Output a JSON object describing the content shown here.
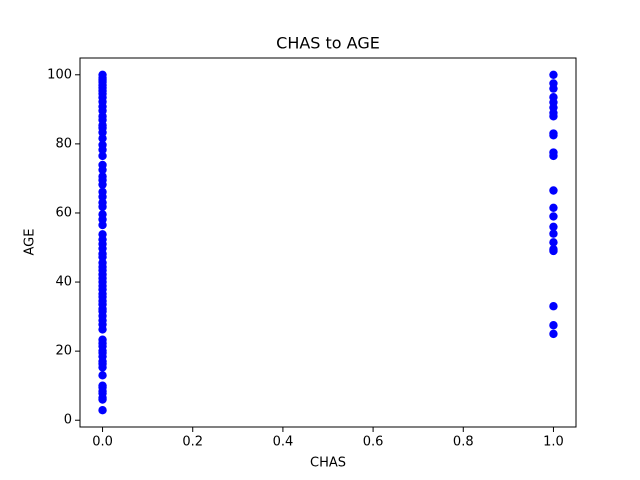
{
  "chart_data": {
    "type": "scatter",
    "title": "CHAS to AGE",
    "x_label": "CHAS",
    "y_label": "AGE",
    "xlim": [
      -0.05,
      1.05
    ],
    "ylim": [
      -1.96,
      104.86
    ],
    "xticks": [
      {
        "value": 0,
        "label": "0.0"
      },
      {
        "value": 0.2,
        "label": "0.2"
      },
      {
        "value": 0.4,
        "label": "0.4"
      },
      {
        "value": 0.6,
        "label": "0.6"
      },
      {
        "value": 0.8,
        "label": "0.8"
      },
      {
        "value": 1,
        "label": "1.0"
      }
    ],
    "yticks": [
      0,
      20,
      40,
      60,
      80,
      100
    ],
    "grid": false,
    "series": [
      {
        "color": "#0000ff",
        "x": [
          0,
          0,
          0,
          0,
          0,
          0,
          0,
          0,
          0,
          0,
          0,
          0,
          0,
          0,
          0,
          0,
          0,
          0,
          0,
          0,
          0,
          0,
          0,
          0,
          0,
          0,
          0,
          0,
          0,
          0,
          0,
          0,
          0,
          0,
          0,
          0,
          0,
          0,
          0,
          0,
          0,
          0,
          0,
          0,
          0,
          0,
          0,
          0,
          0,
          0,
          0,
          0,
          0,
          0,
          0,
          0,
          0,
          0,
          0,
          0,
          0,
          0,
          0,
          0,
          0,
          0,
          0,
          0,
          0,
          0,
          0,
          0,
          0,
          0,
          1,
          1,
          1,
          1,
          1,
          1,
          1,
          1,
          1,
          1,
          1,
          1,
          1,
          1,
          1,
          1,
          1,
          1,
          1,
          1,
          1,
          1,
          1
        ],
        "values": [
          2.9,
          6,
          6.5,
          7.8,
          8.4,
          9.5,
          10,
          13,
          15.3,
          16.3,
          17,
          18.4,
          19.5,
          20.1,
          21.4,
          22.3,
          23.3,
          26.3,
          27.7,
          28.9,
          30.2,
          31.5,
          32.2,
          33.5,
          34.5,
          35.7,
          36.6,
          37.8,
          38.9,
          40,
          41.1,
          42.2,
          43.4,
          44.4,
          45.6,
          47.2,
          48.2,
          49.7,
          51,
          52.3,
          53.8,
          56.5,
          58.1,
          59.6,
          61.8,
          63,
          64.7,
          66.1,
          68.2,
          69.5,
          70.6,
          72.5,
          73.9,
          76.5,
          78.3,
          79.7,
          81.6,
          83.3,
          84.6,
          85.4,
          86.9,
          88,
          89.6,
          90.8,
          92.2,
          93.4,
          94.5,
          95.3,
          96.2,
          97,
          97.9,
          98.5,
          99.1,
          100,
          100,
          97.5,
          96,
          93.5,
          92,
          90.5,
          89,
          88,
          83,
          82.5,
          77.5,
          76.5,
          66.5,
          61.5,
          59,
          56,
          54,
          51.5,
          49.5,
          49,
          33,
          27.5,
          25
        ]
      }
    ]
  }
}
